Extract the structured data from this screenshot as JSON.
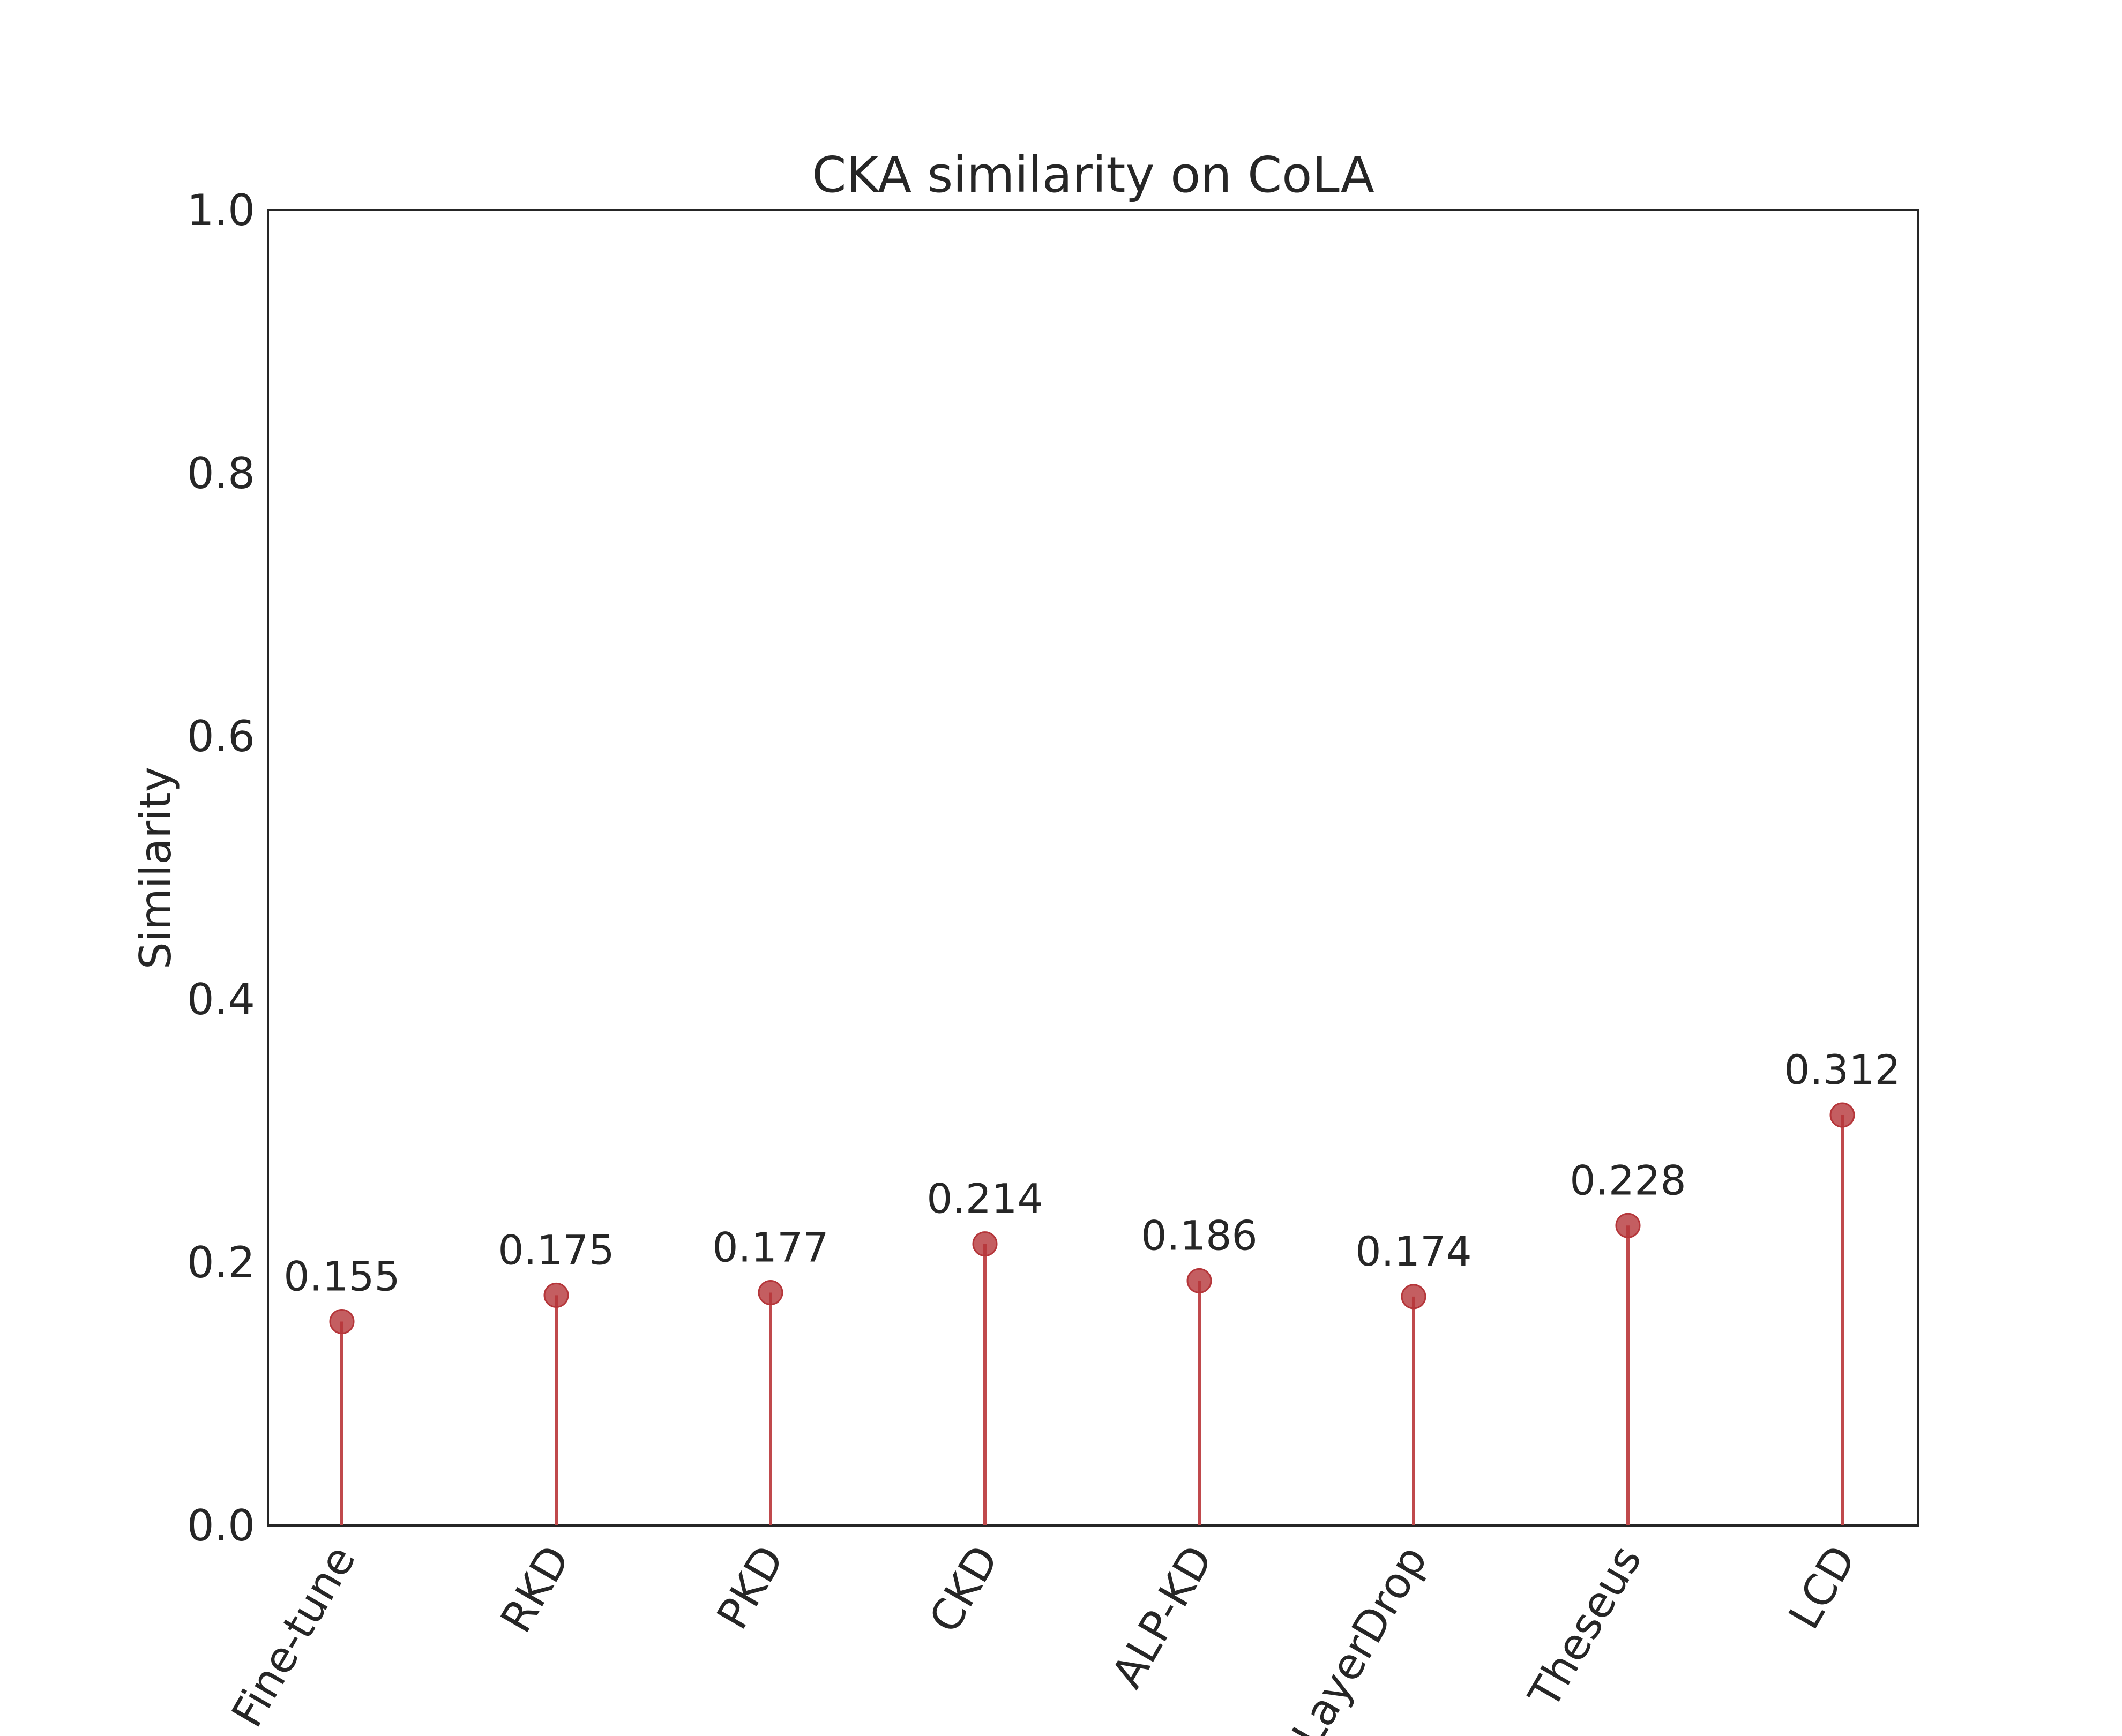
{
  "chart_data": {
    "type": "lollipop",
    "title": "CKA similarity on CoLA",
    "xlabel": "",
    "ylabel": "Similarity",
    "categories": [
      "Fine-tune",
      "RKD",
      "PKD",
      "CKD",
      "ALP-KD",
      "LayerDrop",
      "Theseus",
      "LCD"
    ],
    "values": [
      0.155,
      0.175,
      0.177,
      0.214,
      0.186,
      0.174,
      0.228,
      0.312
    ],
    "value_labels": [
      "0.155",
      "0.175",
      "0.177",
      "0.214",
      "0.186",
      "0.174",
      "0.228",
      "0.312"
    ],
    "ylim": [
      0.0,
      1.0
    ],
    "yticks": [
      0.0,
      0.2,
      0.4,
      0.6,
      0.8,
      1.0
    ],
    "ytick_labels": [
      "0.0",
      "0.2",
      "0.4",
      "0.6",
      "0.8",
      "1.0"
    ],
    "grid": false,
    "legend": "none",
    "marker_color": "#b5363a",
    "stem_color": "#c0494c"
  }
}
